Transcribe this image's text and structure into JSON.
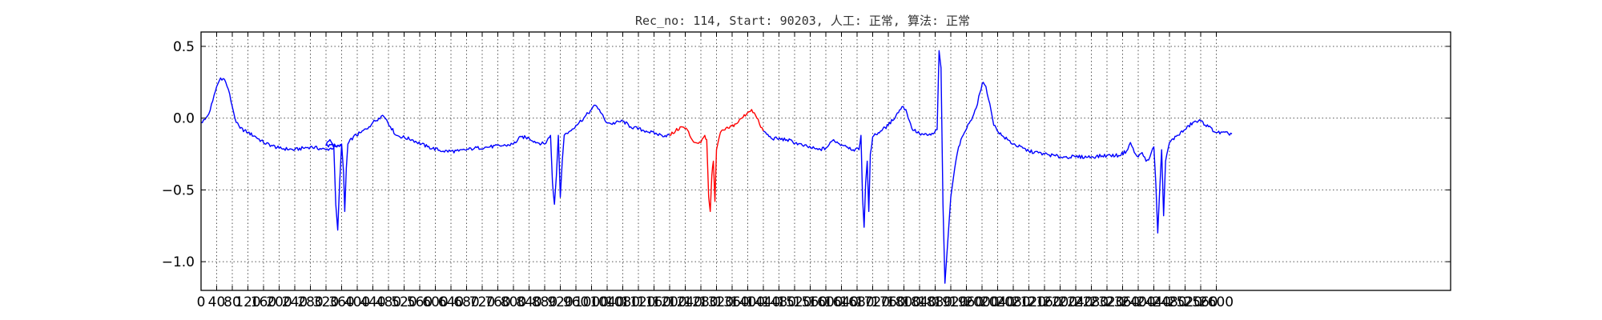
{
  "chart_data": {
    "type": "line",
    "title": "Rec_no: 114, Start: 90203, 人工: 正常, 算法: 正常",
    "xlabel": "",
    "ylabel": "",
    "xlim": [
      0,
      3200
    ],
    "ylim": [
      -1.2,
      0.6
    ],
    "grid": true,
    "y_ticks": [
      0.5,
      0.0,
      -0.5,
      -1.0
    ],
    "y_tick_labels": [
      "0.5",
      "0.0",
      "−0.5",
      "−1.0"
    ],
    "x_ticks": [
      0,
      40,
      80,
      120,
      160,
      200,
      240,
      280,
      320,
      360,
      400,
      440,
      480,
      520,
      560,
      600,
      640,
      680,
      720,
      760,
      800,
      840,
      880,
      920,
      960,
      1000,
      1040,
      1080,
      1120,
      1160,
      1200,
      1240,
      1280,
      1320,
      1360,
      1400,
      1440,
      1480,
      1520,
      1560,
      1600,
      1640,
      1680,
      1720,
      1760,
      1800,
      1840,
      1880,
      1920,
      1960,
      2000,
      2040,
      2080,
      2120,
      2160,
      2200,
      2240,
      2280,
      2320,
      2360,
      2400,
      2440,
      2480,
      2520,
      2560,
      2600
    ],
    "x_tick_labels": [
      "0",
      "40",
      "80",
      "120",
      "160",
      "200",
      "240",
      "280",
      "320",
      "360",
      "400",
      "440",
      "480",
      "520",
      "560",
      "600",
      "640",
      "680",
      "720",
      "760",
      "800",
      "840",
      "880",
      "920",
      "960",
      "1000",
      "1040",
      "1080",
      "1120",
      "1160",
      "1200",
      "1240",
      "1280",
      "1320",
      "1360",
      "1400",
      "1440",
      "1480",
      "1520",
      "1560",
      "1600",
      "1640",
      "1680",
      "1720",
      "1760",
      "1800",
      "1840",
      "1880",
      "1920",
      "1960",
      "2000",
      "2040",
      "2080",
      "2120",
      "2160",
      "2200",
      "2240",
      "2280",
      "2320",
      "2360",
      "2400",
      "2440",
      "2480",
      "2520",
      "2560",
      "2600"
    ],
    "series": [
      {
        "color": "#0000ff",
        "points": [
          [
            0,
            -0.03
          ],
          [
            10,
            -0.01
          ],
          [
            20,
            0.03
          ],
          [
            30,
            0.12
          ],
          [
            40,
            0.22
          ],
          [
            50,
            0.28
          ],
          [
            60,
            0.27
          ],
          [
            70,
            0.2
          ],
          [
            80,
            0.08
          ],
          [
            90,
            -0.03
          ],
          [
            100,
            -0.07
          ],
          [
            120,
            -0.1
          ],
          [
            140,
            -0.13
          ],
          [
            160,
            -0.17
          ],
          [
            180,
            -0.19
          ],
          [
            200,
            -0.21
          ],
          [
            240,
            -0.22
          ],
          [
            280,
            -0.2
          ],
          [
            320,
            -0.22
          ],
          [
            360,
            -0.19
          ],
          [
            320,
            -0.19
          ],
          [
            330,
            -0.15
          ],
          [
            340,
            -0.2
          ],
          [
            345,
            -0.6
          ],
          [
            350,
            -0.78
          ],
          [
            355,
            -0.45
          ],
          [
            360,
            -0.18
          ],
          [
            365,
            -0.38
          ],
          [
            368,
            -0.65
          ],
          [
            372,
            -0.35
          ],
          [
            376,
            -0.18
          ],
          [
            390,
            -0.13
          ],
          [
            410,
            -0.1
          ],
          [
            430,
            -0.06
          ],
          [
            440,
            -0.03
          ],
          [
            455,
            0.0
          ],
          [
            465,
            0.02
          ],
          [
            475,
            -0.01
          ],
          [
            485,
            -0.06
          ],
          [
            500,
            -0.12
          ],
          [
            540,
            -0.15
          ],
          [
            580,
            -0.2
          ],
          [
            620,
            -0.23
          ],
          [
            660,
            -0.23
          ],
          [
            700,
            -0.21
          ],
          [
            740,
            -0.2
          ],
          [
            780,
            -0.19
          ],
          [
            800,
            -0.18
          ],
          [
            820,
            -0.13
          ],
          [
            840,
            -0.14
          ],
          [
            860,
            -0.17
          ],
          [
            880,
            -0.18
          ],
          [
            895,
            -0.12
          ],
          [
            900,
            -0.45
          ],
          [
            905,
            -0.6
          ],
          [
            910,
            -0.4
          ],
          [
            915,
            -0.12
          ],
          [
            920,
            -0.55
          ],
          [
            925,
            -0.3
          ],
          [
            930,
            -0.12
          ],
          [
            945,
            -0.09
          ],
          [
            960,
            -0.05
          ],
          [
            980,
            0.0
          ],
          [
            1000,
            0.06
          ],
          [
            1010,
            0.09
          ],
          [
            1020,
            0.06
          ],
          [
            1035,
            -0.02
          ],
          [
            1050,
            -0.04
          ],
          [
            1080,
            -0.02
          ],
          [
            1100,
            -0.06
          ],
          [
            1140,
            -0.09
          ],
          [
            1180,
            -0.12
          ],
          [
            1200,
            -0.12
          ]
        ]
      },
      {
        "color": "#ff0000",
        "points": [
          [
            1200,
            -0.12
          ],
          [
            1215,
            -0.09
          ],
          [
            1230,
            -0.06
          ],
          [
            1245,
            -0.08
          ],
          [
            1255,
            -0.14
          ],
          [
            1265,
            -0.17
          ],
          [
            1280,
            -0.17
          ],
          [
            1290,
            -0.12
          ],
          [
            1295,
            -0.15
          ],
          [
            1300,
            -0.55
          ],
          [
            1304,
            -0.65
          ],
          [
            1308,
            -0.4
          ],
          [
            1312,
            -0.3
          ],
          [
            1316,
            -0.58
          ],
          [
            1320,
            -0.22
          ],
          [
            1330,
            -0.1
          ],
          [
            1350,
            -0.07
          ],
          [
            1370,
            -0.04
          ],
          [
            1385,
            0.0
          ],
          [
            1400,
            0.04
          ],
          [
            1410,
            0.06
          ],
          [
            1420,
            0.02
          ],
          [
            1430,
            -0.04
          ],
          [
            1440,
            -0.09
          ]
        ]
      },
      {
        "color": "#0000ff",
        "points": [
          [
            1440,
            -0.09
          ],
          [
            1460,
            -0.14
          ],
          [
            1500,
            -0.15
          ],
          [
            1540,
            -0.19
          ],
          [
            1580,
            -0.22
          ],
          [
            1600,
            -0.21
          ],
          [
            1620,
            -0.15
          ],
          [
            1635,
            -0.18
          ],
          [
            1650,
            -0.19
          ],
          [
            1670,
            -0.22
          ],
          [
            1685,
            -0.22
          ],
          [
            1690,
            -0.12
          ],
          [
            1694,
            -0.55
          ],
          [
            1698,
            -0.76
          ],
          [
            1702,
            -0.45
          ],
          [
            1706,
            -0.3
          ],
          [
            1710,
            -0.65
          ],
          [
            1714,
            -0.25
          ],
          [
            1720,
            -0.13
          ],
          [
            1740,
            -0.09
          ],
          [
            1760,
            -0.05
          ],
          [
            1780,
            0.02
          ],
          [
            1795,
            0.08
          ],
          [
            1805,
            0.06
          ],
          [
            1820,
            -0.07
          ],
          [
            1840,
            -0.11
          ],
          [
            1860,
            -0.12
          ],
          [
            1875,
            -0.11
          ],
          [
            1885,
            -0.08
          ],
          [
            1890,
            0.47
          ],
          [
            1895,
            0.35
          ],
          [
            1900,
            -0.6
          ],
          [
            1905,
            -1.15
          ],
          [
            1910,
            -0.95
          ],
          [
            1920,
            -0.55
          ],
          [
            1930,
            -0.35
          ],
          [
            1940,
            -0.2
          ],
          [
            1955,
            -0.1
          ],
          [
            1970,
            -0.02
          ],
          [
            1985,
            0.07
          ],
          [
            1995,
            0.18
          ],
          [
            2003,
            0.25
          ],
          [
            2010,
            0.22
          ],
          [
            2020,
            0.1
          ],
          [
            2030,
            -0.05
          ],
          [
            2050,
            -0.12
          ],
          [
            2080,
            -0.18
          ],
          [
            2120,
            -0.23
          ],
          [
            2160,
            -0.25
          ],
          [
            2200,
            -0.27
          ],
          [
            2240,
            -0.27
          ],
          [
            2280,
            -0.27
          ],
          [
            2320,
            -0.26
          ],
          [
            2350,
            -0.26
          ],
          [
            2370,
            -0.23
          ],
          [
            2380,
            -0.17
          ],
          [
            2390,
            -0.24
          ],
          [
            2400,
            -0.27
          ],
          [
            2410,
            -0.24
          ],
          [
            2420,
            -0.3
          ],
          [
            2430,
            -0.27
          ],
          [
            2440,
            -0.2
          ],
          [
            2445,
            -0.45
          ],
          [
            2450,
            -0.8
          ],
          [
            2455,
            -0.5
          ],
          [
            2460,
            -0.22
          ],
          [
            2465,
            -0.68
          ],
          [
            2470,
            -0.3
          ],
          [
            2480,
            -0.17
          ],
          [
            2500,
            -0.12
          ],
          [
            2520,
            -0.08
          ],
          [
            2540,
            -0.03
          ],
          [
            2560,
            -0.02
          ],
          [
            2580,
            -0.06
          ],
          [
            2600,
            -0.1
          ],
          [
            2640,
            -0.11
          ]
        ]
      }
    ]
  }
}
